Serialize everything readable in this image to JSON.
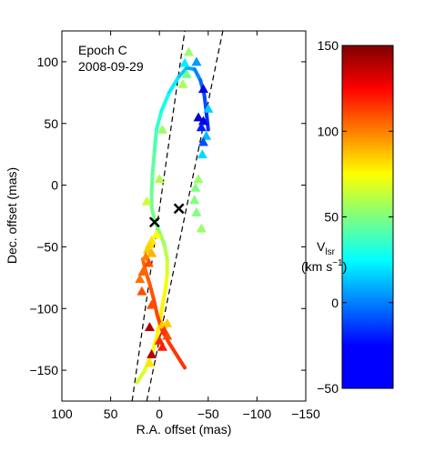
{
  "chart_data": {
    "type": "scatter",
    "annotation": {
      "epoch": "Epoch C",
      "date": "2008-09-29"
    },
    "xlabel": "R.A. offset (mas)",
    "ylabel": "Dec. offset (mas)",
    "xlim": [
      100,
      -150
    ],
    "ylim": [
      -175,
      125
    ],
    "x_ticks": [
      100,
      50,
      0,
      -50,
      -100,
      -150
    ],
    "x_tick_labels": [
      "100",
      "50",
      "0",
      "−50",
      "−100",
      "−150"
    ],
    "y_ticks": [
      100,
      50,
      0,
      -50,
      -100,
      -150
    ],
    "y_tick_labels": [
      "100",
      "50",
      "0",
      "−50",
      "−100",
      "−150"
    ],
    "colorbar": {
      "label_main": "V",
      "label_sub": "lsr",
      "label_units": "(km s",
      "label_units_sup": "−1",
      "label_units_end": ")",
      "range": [
        -50,
        150
      ],
      "ticks": [
        150,
        100,
        50,
        0,
        -50
      ],
      "tick_labels": [
        "150",
        "100",
        "50",
        "0",
        "−50"
      ]
    },
    "crosses": [
      {
        "x": 5,
        "y": -30
      },
      {
        "x": -20,
        "y": -19
      }
    ],
    "dashed_lines": [
      {
        "x1": 28,
        "y1": -175,
        "x2": -26,
        "y2": 125
      },
      {
        "x1": 13,
        "y1": -175,
        "x2": -65,
        "y2": 125
      }
    ],
    "model_curve": [
      {
        "x": 23,
        "y": -160,
        "v": 65
      },
      {
        "x": 15,
        "y": -150,
        "v": 68
      },
      {
        "x": 8,
        "y": -137,
        "v": 72
      },
      {
        "x": 3,
        "y": -124,
        "v": 76
      },
      {
        "x": 0,
        "y": -112,
        "v": 78
      },
      {
        "x": -3,
        "y": -98,
        "v": 78
      },
      {
        "x": -6,
        "y": -85,
        "v": 75
      },
      {
        "x": -8,
        "y": -72,
        "v": 70
      },
      {
        "x": -8,
        "y": -60,
        "v": 64
      },
      {
        "x": -5,
        "y": -48,
        "v": 58
      },
      {
        "x": 0,
        "y": -38,
        "v": 54
      },
      {
        "x": 5,
        "y": -28,
        "v": 50
      },
      {
        "x": 8,
        "y": -18,
        "v": 48
      },
      {
        "x": 8,
        "y": -5,
        "v": 46
      },
      {
        "x": 7,
        "y": 10,
        "v": 45
      },
      {
        "x": 5,
        "y": 28,
        "v": 42
      },
      {
        "x": 3,
        "y": 45,
        "v": 38
      },
      {
        "x": -2,
        "y": 60,
        "v": 32
      },
      {
        "x": -10,
        "y": 75,
        "v": 25
      },
      {
        "x": -20,
        "y": 88,
        "v": 18
      },
      {
        "x": -28,
        "y": 95,
        "v": 12
      },
      {
        "x": -36,
        "y": 94,
        "v": 5
      },
      {
        "x": -42,
        "y": 85,
        "v": -2
      },
      {
        "x": -46,
        "y": 73,
        "v": -8
      },
      {
        "x": -48,
        "y": 60,
        "v": -14
      },
      {
        "x": -50,
        "y": 45,
        "v": -20
      },
      {
        "x": -26,
        "y": -148,
        "v": 115
      },
      {
        "x": -18,
        "y": -138,
        "v": 115
      },
      {
        "x": -10,
        "y": -128,
        "v": 114
      },
      {
        "x": -3,
        "y": -118,
        "v": 113
      },
      {
        "x": 2,
        "y": -106,
        "v": 112
      },
      {
        "x": 6,
        "y": -92,
        "v": 110
      },
      {
        "x": 10,
        "y": -80,
        "v": 108
      },
      {
        "x": 14,
        "y": -70,
        "v": 106
      },
      {
        "x": 17,
        "y": -60,
        "v": 104
      }
    ],
    "points": [
      {
        "x": -30,
        "y": 108,
        "v": 55
      },
      {
        "x": -38,
        "y": 100,
        "v": 5
      },
      {
        "x": -26,
        "y": 99,
        "v": 22
      },
      {
        "x": -28,
        "y": 90,
        "v": 48
      },
      {
        "x": -24,
        "y": 82,
        "v": 58
      },
      {
        "x": -45,
        "y": 78,
        "v": -30
      },
      {
        "x": -50,
        "y": 62,
        "v": 15
      },
      {
        "x": -40,
        "y": 55,
        "v": -35
      },
      {
        "x": -45,
        "y": 52,
        "v": -30
      },
      {
        "x": -43,
        "y": 47,
        "v": -20
      },
      {
        "x": -48,
        "y": 40,
        "v": 12
      },
      {
        "x": -45,
        "y": 35,
        "v": -10
      },
      {
        "x": -44,
        "y": 25,
        "v": 18
      },
      {
        "x": -40,
        "y": 5,
        "v": 55
      },
      {
        "x": -37,
        "y": -2,
        "v": 50
      },
      {
        "x": -36,
        "y": -12,
        "v": 50
      },
      {
        "x": -38,
        "y": -22,
        "v": 50
      },
      {
        "x": -43,
        "y": -35,
        "v": 55
      },
      {
        "x": 0,
        "y": 5,
        "v": 60
      },
      {
        "x": -3,
        "y": 45,
        "v": 55
      },
      {
        "x": 13,
        "y": -13,
        "v": 65
      },
      {
        "x": 3,
        "y": -40,
        "v": 75
      },
      {
        "x": 8,
        "y": -45,
        "v": 80
      },
      {
        "x": 10,
        "y": -48,
        "v": 82
      },
      {
        "x": 12,
        "y": -52,
        "v": 85
      },
      {
        "x": 8,
        "y": -55,
        "v": 90
      },
      {
        "x": 14,
        "y": -58,
        "v": 100
      },
      {
        "x": 11,
        "y": -63,
        "v": 110
      },
      {
        "x": 17,
        "y": -70,
        "v": 105
      },
      {
        "x": 20,
        "y": -76,
        "v": 103
      },
      {
        "x": 18,
        "y": -86,
        "v": 110
      },
      {
        "x": 8,
        "y": -97,
        "v": 110
      },
      {
        "x": -8,
        "y": -112,
        "v": 85
      },
      {
        "x": -3,
        "y": -113,
        "v": 85
      },
      {
        "x": 10,
        "y": -115,
        "v": 140
      },
      {
        "x": -5,
        "y": -118,
        "v": 115
      },
      {
        "x": -8,
        "y": -122,
        "v": 110
      },
      {
        "x": 0,
        "y": -126,
        "v": 118
      },
      {
        "x": -3,
        "y": -131,
        "v": 120
      },
      {
        "x": 8,
        "y": -137,
        "v": 140
      },
      {
        "x": 10,
        "y": -144,
        "v": 80
      }
    ]
  }
}
